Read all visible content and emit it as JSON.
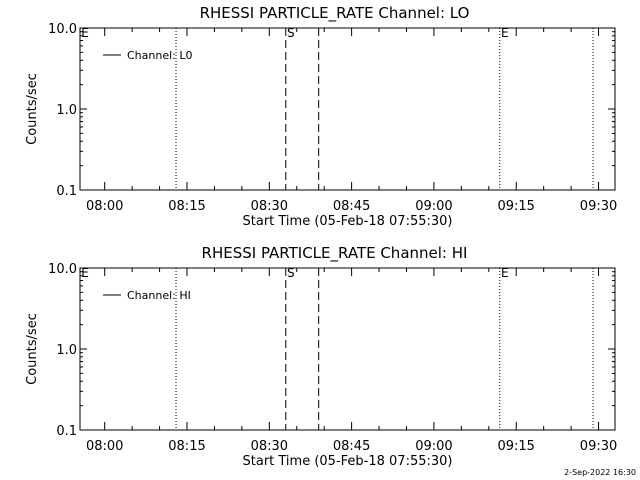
{
  "footer_date": "2-Sep-2022 16:30",
  "chart_data": [
    {
      "type": "line",
      "title": "RHESSI PARTICLE_RATE Channel: LO",
      "xlabel": "Start Time (05-Feb-18 07:55:30)",
      "ylabel": "Counts/sec",
      "y_scale": "log",
      "ylim": [
        0.1,
        10.0
      ],
      "y_ticks": [
        "0.1",
        "1.0",
        "10.0"
      ],
      "xlim": [
        "07:55:30",
        "09:33:00"
      ],
      "x_ticks": [
        "08:00",
        "08:15",
        "08:30",
        "08:45",
        "09:00",
        "09:15",
        "09:30"
      ],
      "legend": {
        "placement": "top-left",
        "entries": [
          "Channel: L0"
        ]
      },
      "series": [
        {
          "name": "Channel: L0",
          "values": []
        }
      ],
      "dotted_lines": [
        "08:13:00",
        "09:12:00",
        "09:29:00"
      ],
      "dashed_lines": [
        "08:33:00",
        "08:39:00"
      ],
      "markers": [
        {
          "label": "E",
          "time": "07:55:30"
        },
        {
          "label": "S",
          "time": "08:33:00"
        },
        {
          "label": "E",
          "time": "09:12:00"
        }
      ],
      "grid": false
    },
    {
      "type": "line",
      "title": "RHESSI PARTICLE_RATE Channel: HI",
      "xlabel": "Start Time (05-Feb-18 07:55:30)",
      "ylabel": "Counts/sec",
      "y_scale": "log",
      "ylim": [
        0.1,
        10.0
      ],
      "y_ticks": [
        "0.1",
        "1.0",
        "10.0"
      ],
      "xlim": [
        "07:55:30",
        "09:33:00"
      ],
      "x_ticks": [
        "08:00",
        "08:15",
        "08:30",
        "08:45",
        "09:00",
        "09:15",
        "09:30"
      ],
      "legend": {
        "placement": "top-left",
        "entries": [
          "Channel: HI"
        ]
      },
      "series": [
        {
          "name": "Channel: HI",
          "values": []
        }
      ],
      "dotted_lines": [
        "08:13:00",
        "09:12:00",
        "09:29:00"
      ],
      "dashed_lines": [
        "08:33:00",
        "08:39:00"
      ],
      "markers": [
        {
          "label": "E",
          "time": "07:55:30"
        },
        {
          "label": "S",
          "time": "08:33:00"
        },
        {
          "label": "E",
          "time": "09:12:00"
        }
      ],
      "grid": false
    }
  ]
}
